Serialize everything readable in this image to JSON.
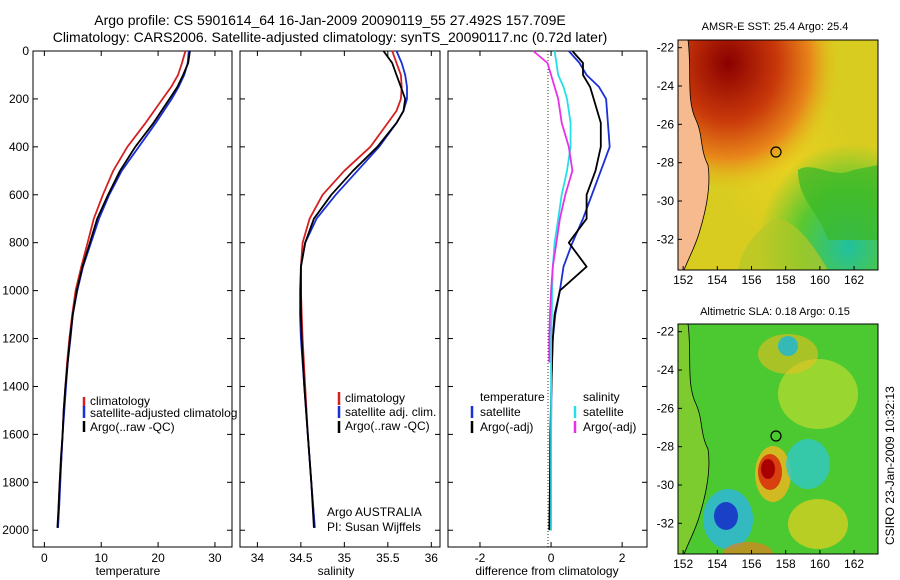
{
  "header": {
    "title_line1": "Argo profile: CS 5901614_64 16-Jan-2009 20090119_55 27.492S 157.709E",
    "title_line2": "Climatology: CARS2006. Satellite-adjusted climatology: synTS_20090117.nc (0.72d later)"
  },
  "side_credit": "CSIRO 23-Jan-2009 10:32:13",
  "colors": {
    "clim": "#d42020",
    "sat": "#1a2fd6",
    "argo": "#000000",
    "cyan": "#22e0e8",
    "magenta": "#e830e8"
  },
  "chart_data": [
    {
      "id": "temperature",
      "type": "line",
      "xlabel": "temperature",
      "xlim": [
        -2,
        33
      ],
      "xticks": [
        0,
        10,
        20,
        30
      ],
      "ylim": [
        0,
        2070
      ],
      "yticks": [
        0,
        200,
        400,
        600,
        800,
        1000,
        1200,
        1400,
        1600,
        1800,
        2000
      ],
      "depth": [
        0,
        50,
        100,
        150,
        200,
        300,
        400,
        500,
        600,
        700,
        800,
        900,
        1000,
        1100,
        1200,
        1300,
        1400,
        1500,
        1600,
        1700,
        1800,
        1900,
        1990
      ],
      "series": [
        {
          "name": "climatology",
          "color": "clim",
          "values": [
            24.8,
            24.2,
            23.5,
            22.3,
            20.8,
            17.8,
            14.6,
            12.1,
            10.3,
            8.7,
            7.6,
            6.5,
            5.5,
            4.9,
            4.4,
            4.0,
            3.7,
            3.4,
            3.2,
            3.0,
            2.7,
            2.5,
            2.4
          ]
        },
        {
          "name": "satellite-adjusted climatology",
          "color": "sat",
          "values": [
            25.4,
            25.2,
            24.6,
            23.6,
            22.4,
            19.6,
            16.6,
            13.6,
            11.4,
            9.6,
            8.2,
            6.8,
            5.8,
            5.0,
            4.6,
            4.1,
            3.8,
            3.5,
            3.2,
            3.0,
            2.8,
            2.6,
            2.4
          ]
        },
        {
          "name": "Argo(..raw -QC)",
          "color": "argo",
          "values": [
            25.6,
            25.3,
            24.4,
            23.4,
            22.0,
            19.2,
            16.0,
            13.3,
            11.2,
            9.3,
            8.0,
            6.7,
            5.7,
            5.0,
            4.5,
            4.1,
            3.7,
            3.4,
            3.2,
            2.9,
            2.7,
            2.5,
            2.3
          ]
        }
      ],
      "legend": [
        "climatology",
        "satellite-adjusted climatolog",
        "Argo(..raw -QC)"
      ]
    },
    {
      "id": "salinity",
      "type": "line",
      "xlabel": "salinity",
      "xlim": [
        33.8,
        36.1
      ],
      "xticks": [
        34,
        34.5,
        35,
        35.5,
        36
      ],
      "xtick_labels": [
        "34",
        "34.5",
        "35",
        "35.5",
        "36"
      ],
      "ylim": [
        0,
        2070
      ],
      "depth": [
        0,
        50,
        100,
        150,
        200,
        250,
        300,
        400,
        500,
        600,
        700,
        800,
        900,
        1000,
        1100,
        1200,
        1400,
        1600,
        1800,
        1990
      ],
      "series": [
        {
          "name": "climatology",
          "color": "clim",
          "values": [
            35.55,
            35.6,
            35.65,
            35.66,
            35.65,
            35.6,
            35.5,
            35.3,
            35.0,
            34.75,
            34.6,
            34.52,
            34.5,
            34.5,
            34.51,
            34.52,
            34.55,
            34.58,
            34.62,
            34.66
          ]
        },
        {
          "name": "satellite adj. clim.",
          "color": "sat",
          "values": [
            35.6,
            35.66,
            35.7,
            35.72,
            35.72,
            35.68,
            35.6,
            35.4,
            35.15,
            34.9,
            34.68,
            34.55,
            34.5,
            34.49,
            34.49,
            34.5,
            34.54,
            34.58,
            34.62,
            34.66
          ]
        },
        {
          "name": "Argo(..raw -QC)",
          "color": "argo",
          "values": [
            35.45,
            35.55,
            35.6,
            35.65,
            35.7,
            35.68,
            35.6,
            35.38,
            35.1,
            34.85,
            34.65,
            34.55,
            34.5,
            34.5,
            34.5,
            34.51,
            34.54,
            34.58,
            34.62,
            34.65
          ]
        }
      ],
      "legend": [
        "climatology",
        "satellite adj. clim.",
        "Argo(..raw -QC)"
      ],
      "annotation_line1": "Argo AUSTRALIA",
      "annotation_line2": "PI: Susan Wijffels"
    },
    {
      "id": "difference",
      "type": "line",
      "xlabel": "difference from climatology",
      "xlim": [
        -2.9,
        2.7
      ],
      "xticks": [
        -2,
        0,
        2
      ],
      "ylim": [
        0,
        2070
      ],
      "depth": [
        0,
        50,
        100,
        150,
        200,
        300,
        400,
        500,
        600,
        700,
        800,
        900,
        1000,
        1100,
        1200,
        1300,
        1400,
        1600,
        1800,
        2000
      ],
      "series": [
        {
          "name": "temperature satellite",
          "color": "sat",
          "values": [
            0.5,
            0.8,
            1.0,
            1.35,
            1.55,
            1.6,
            1.65,
            1.4,
            1.15,
            0.9,
            0.6,
            0.35,
            0.25,
            0.12,
            0.05,
            0.02,
            0.01,
            0,
            0,
            0
          ]
        },
        {
          "name": "temperature Argo(-adj)",
          "color": "argo",
          "values": [
            0.6,
            0.9,
            0.9,
            1.1,
            1.2,
            1.4,
            1.4,
            1.25,
            1.0,
            1.0,
            0.5,
            1.0,
            0.25,
            0.1,
            0.05,
            0.03,
            0.01,
            -0.02,
            -0.03,
            -0.05
          ]
        },
        {
          "name": "salinity satellite",
          "color": "cyan",
          "values": [
            0.1,
            0.15,
            0.2,
            0.35,
            0.45,
            0.55,
            0.55,
            0.45,
            0.3,
            0.2,
            0.1,
            0.05,
            0.03,
            0.02,
            0.0,
            0.0,
            0.0,
            0.0,
            0.0,
            0.0
          ]
        },
        {
          "name": "salinity Argo(-adj)",
          "color": "magenta",
          "values": [
            -0.5,
            -0.1,
            0.0,
            0.1,
            0.2,
            0.3,
            0.5,
            0.6,
            0.4,
            0.25,
            0.15,
            0.05,
            0.0,
            -0.03,
            -0.05,
            -0.05,
            null,
            null,
            null,
            null
          ]
        }
      ],
      "legend_left": {
        "heading": "temperature",
        "items": [
          "satellite",
          "Argo(-adj)"
        ]
      },
      "legend_right": {
        "heading": "salinity",
        "items": [
          "satellite",
          "Argo(-adj)"
        ]
      }
    },
    {
      "id": "sst_map",
      "type": "heatmap",
      "title": "AMSR-E SST: 25.4 Argo: 25.4",
      "xticks": [
        152,
        154,
        156,
        158,
        160,
        162
      ],
      "yticks": [
        -22,
        -24,
        -26,
        -28,
        -30,
        -32
      ],
      "xlim": [
        151.7,
        163.4
      ],
      "ylim": [
        -33.6,
        -21.6
      ],
      "float_position": [
        157.709,
        -27.492
      ]
    },
    {
      "id": "sla_map",
      "type": "heatmap",
      "title": "Altimetric SLA: 0.18 Argo: 0.15",
      "xticks": [
        152,
        154,
        156,
        158,
        160,
        162
      ],
      "yticks": [
        -22,
        -24,
        -26,
        -28,
        -30,
        -32
      ],
      "xlim": [
        151.7,
        163.4
      ],
      "ylim": [
        -33.6,
        -21.6
      ],
      "float_position": [
        157.709,
        -27.492
      ]
    }
  ]
}
